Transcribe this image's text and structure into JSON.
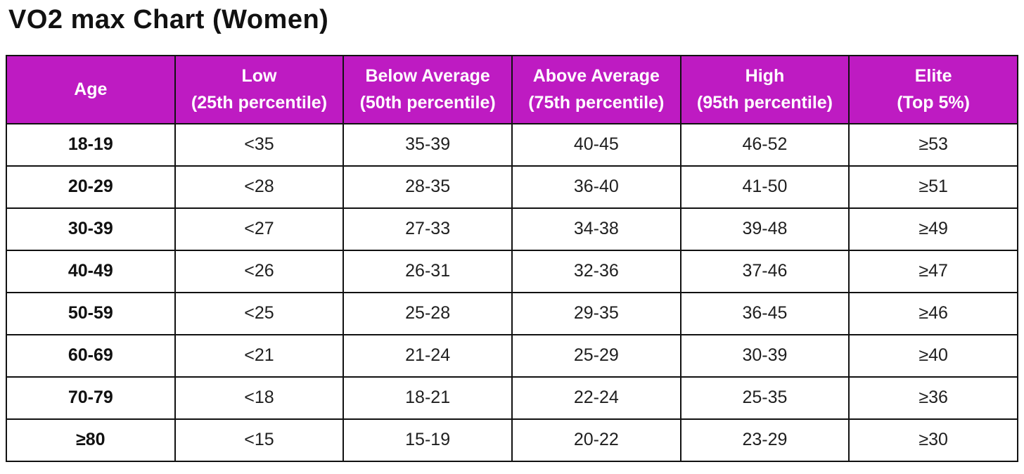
{
  "title": "VO2 max Chart (Women)",
  "colors": {
    "header_bg": "#BE1BC2",
    "header_text": "#FFFFFF",
    "border": "#111111",
    "title_text": "#111111",
    "cell_text": "#1F1F1F"
  },
  "chart_data": {
    "type": "table",
    "title": "VO2 max Chart (Women)",
    "columns": [
      {
        "key": "age",
        "label": "Age"
      },
      {
        "key": "low",
        "label": "Low\n(25th percentile)"
      },
      {
        "key": "below-average",
        "label": "Below Average\n(50th percentile)"
      },
      {
        "key": "above-average",
        "label": "Above Average\n(75th percentile)"
      },
      {
        "key": "high",
        "label": "High\n(95th percentile)"
      },
      {
        "key": "elite",
        "label": "Elite\n(Top 5%)"
      }
    ],
    "rows": [
      {
        "age": "18-19",
        "cells": [
          "<35",
          "35-39",
          "40-45",
          "46-52",
          "≥53"
        ]
      },
      {
        "age": "20-29",
        "cells": [
          "<28",
          "28-35",
          "36-40",
          "41-50",
          "≥51"
        ]
      },
      {
        "age": "30-39",
        "cells": [
          "<27",
          "27-33",
          "34-38",
          "39-48",
          "≥49"
        ]
      },
      {
        "age": "40-49",
        "cells": [
          "<26",
          "26-31",
          "32-36",
          "37-46",
          "≥47"
        ]
      },
      {
        "age": "50-59",
        "cells": [
          "<25",
          "25-28",
          "29-35",
          "36-45",
          "≥46"
        ]
      },
      {
        "age": "60-69",
        "cells": [
          "<21",
          "21-24",
          "25-29",
          "30-39",
          "≥40"
        ]
      },
      {
        "age": "70-79",
        "cells": [
          "<18",
          "18-21",
          "22-24",
          "25-35",
          "≥36"
        ]
      },
      {
        "age": "≥80",
        "cells": [
          "<15",
          "15-19",
          "20-22",
          "23-29",
          "≥30"
        ]
      }
    ]
  }
}
